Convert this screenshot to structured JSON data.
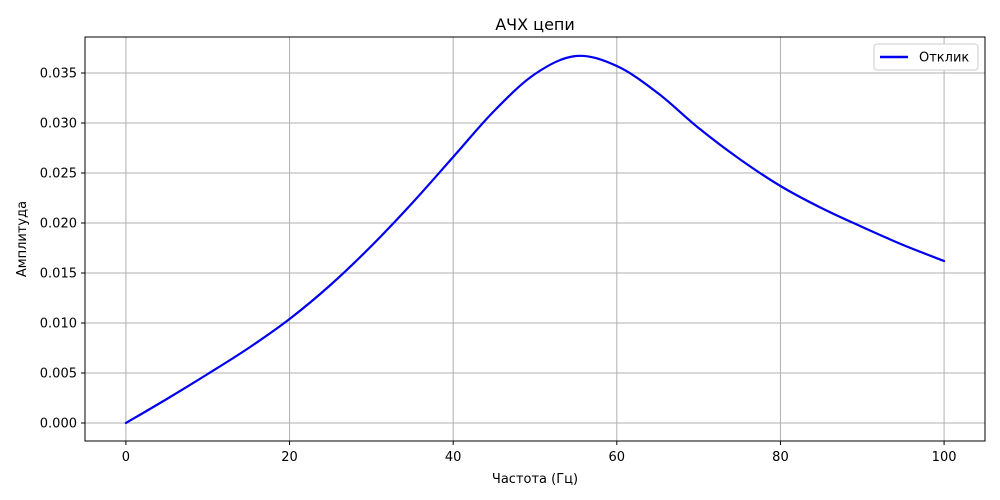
{
  "chart_data": {
    "type": "line",
    "title": "АЧХ цепи",
    "xlabel": "Частота (Гц)",
    "ylabel": "Амплитуда",
    "xlim": [
      -5,
      105
    ],
    "ylim": [
      -0.0018,
      0.0386
    ],
    "xticks": [
      0,
      20,
      40,
      60,
      80,
      100
    ],
    "yticks": [
      0.0,
      0.005,
      0.01,
      0.015,
      0.02,
      0.025,
      0.03,
      0.035
    ],
    "xtick_labels": [
      "0",
      "20",
      "40",
      "60",
      "80",
      "100"
    ],
    "ytick_labels": [
      "0.000",
      "0.005",
      "0.010",
      "0.015",
      "0.020",
      "0.025",
      "0.030",
      "0.035"
    ],
    "grid": true,
    "legend": {
      "placement": "top-right"
    },
    "series": [
      {
        "name": "Отклик",
        "color": "#0000ee",
        "x": [
          0,
          5,
          10,
          15,
          20,
          25,
          30,
          35,
          40,
          45,
          50,
          55,
          60,
          65,
          70,
          75,
          80,
          85,
          90,
          95,
          100
        ],
        "y": [
          0.0,
          0.0024,
          0.0049,
          0.0075,
          0.0104,
          0.0138,
          0.0177,
          0.022,
          0.0266,
          0.0312,
          0.0349,
          0.0367,
          0.0357,
          0.033,
          0.0295,
          0.0264,
          0.0237,
          0.0215,
          0.0196,
          0.0178,
          0.0162
        ]
      }
    ]
  }
}
